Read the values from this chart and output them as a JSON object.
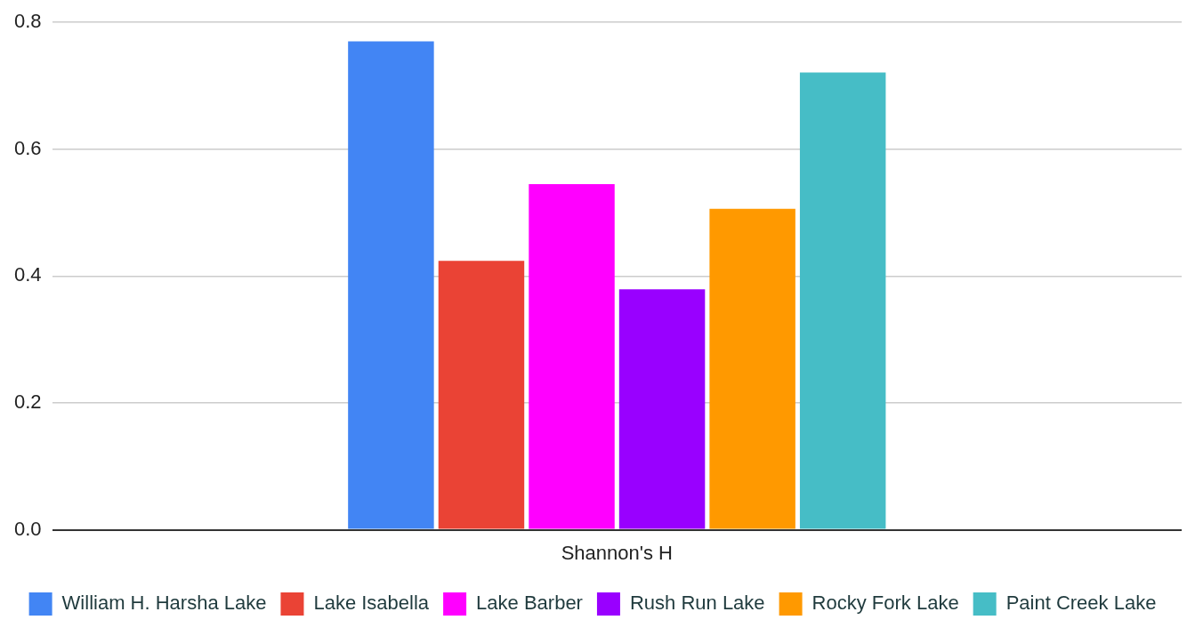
{
  "chart_data": {
    "type": "bar",
    "categories": [
      "Shannon's H"
    ],
    "series": [
      {
        "name": "William H. Harsha Lake",
        "color": "#4285f4",
        "values": [
          0.77
        ]
      },
      {
        "name": "Lake Isabella",
        "color": "#ea4335",
        "values": [
          0.424
        ]
      },
      {
        "name": "Lake Barber",
        "color": "#ff00ff",
        "values": [
          0.545
        ]
      },
      {
        "name": "Rush Run Lake",
        "color": "#9900ff",
        "values": [
          0.379
        ]
      },
      {
        "name": "Rocky Fork Lake",
        "color": "#ff9900",
        "values": [
          0.506
        ]
      },
      {
        "name": "Paint Creek Lake",
        "color": "#46bdc6",
        "values": [
          0.721
        ]
      }
    ],
    "ylim": [
      0,
      0.8
    ],
    "yticks": [
      {
        "value": 0,
        "label": "0.0"
      },
      {
        "value": 0.2,
        "label": "0.2"
      },
      {
        "value": 0.4,
        "label": "0.4"
      },
      {
        "value": 0.6,
        "label": "0.6"
      },
      {
        "value": 0.8,
        "label": "0.8"
      }
    ],
    "grid": "y",
    "legend": "bottom"
  }
}
